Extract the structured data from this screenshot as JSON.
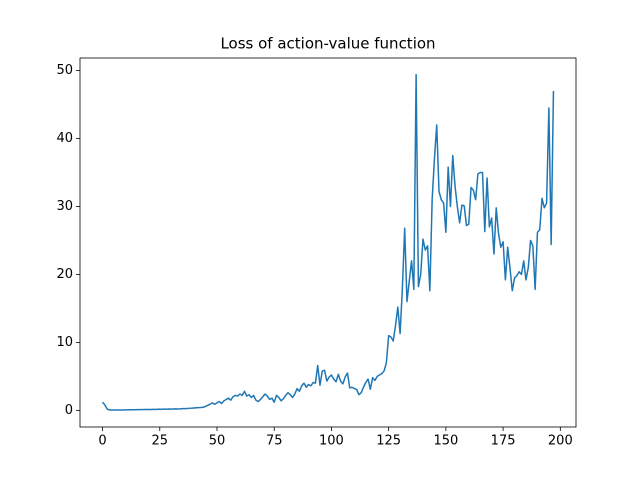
{
  "chart_data": {
    "type": "line",
    "title": "Loss of action-value function",
    "x": [
      0,
      1,
      2,
      3,
      4,
      5,
      6,
      7,
      8,
      9,
      10,
      11,
      12,
      13,
      14,
      15,
      16,
      17,
      18,
      19,
      20,
      21,
      22,
      23,
      24,
      25,
      26,
      27,
      28,
      29,
      30,
      31,
      32,
      33,
      34,
      35,
      36,
      37,
      38,
      39,
      40,
      41,
      42,
      43,
      44,
      45,
      46,
      47,
      48,
      49,
      50,
      51,
      52,
      53,
      54,
      55,
      56,
      57,
      58,
      59,
      60,
      61,
      62,
      63,
      64,
      65,
      66,
      67,
      68,
      69,
      70,
      71,
      72,
      73,
      74,
      75,
      76,
      77,
      78,
      79,
      80,
      81,
      82,
      83,
      84,
      85,
      86,
      87,
      88,
      89,
      90,
      91,
      92,
      93,
      94,
      95,
      96,
      97,
      98,
      99,
      100,
      101,
      102,
      103,
      104,
      105,
      106,
      107,
      108,
      109,
      110,
      111,
      112,
      113,
      114,
      115,
      116,
      117,
      118,
      119,
      120,
      121,
      122,
      123,
      124,
      125,
      126,
      127,
      128,
      129,
      130,
      131,
      132,
      133,
      134,
      135,
      136,
      137,
      138,
      139,
      140,
      141,
      142,
      143,
      144,
      145,
      146,
      147,
      148,
      149,
      150,
      151,
      152,
      153,
      154,
      155,
      156,
      157,
      158,
      159,
      160,
      161,
      162,
      163,
      164,
      165,
      166,
      167,
      168,
      169,
      170,
      171,
      172,
      173,
      174,
      175,
      176,
      177,
      178,
      179,
      180,
      181,
      182,
      183,
      184,
      185,
      186,
      187,
      188,
      189,
      190,
      191,
      192,
      193,
      194,
      195,
      196,
      197
    ],
    "series": [
      {
        "color": "#1f77b4",
        "values": [
          1.2,
          0.8,
          0.2,
          0.05,
          0.05,
          0.05,
          0.05,
          0.05,
          0.06,
          0.06,
          0.07,
          0.07,
          0.08,
          0.08,
          0.09,
          0.1,
          0.1,
          0.1,
          0.12,
          0.12,
          0.13,
          0.13,
          0.14,
          0.14,
          0.15,
          0.18,
          0.15,
          0.2,
          0.17,
          0.2,
          0.18,
          0.2,
          0.22,
          0.2,
          0.22,
          0.25,
          0.25,
          0.28,
          0.3,
          0.32,
          0.35,
          0.38,
          0.4,
          0.42,
          0.45,
          0.6,
          0.75,
          0.9,
          1.1,
          0.9,
          1.1,
          1.3,
          1.0,
          1.4,
          1.6,
          1.8,
          1.5,
          2.0,
          2.2,
          2.1,
          2.4,
          2.2,
          2.8,
          2.1,
          2.3,
          1.9,
          2.2,
          1.5,
          1.3,
          1.6,
          2.0,
          2.4,
          2.1,
          1.6,
          1.8,
          1.2,
          2.2,
          1.9,
          1.4,
          1.7,
          2.2,
          2.6,
          2.3,
          1.9,
          2.4,
          3.2,
          2.8,
          3.6,
          4.0,
          3.4,
          3.8,
          3.6,
          4.1,
          4.0,
          6.6,
          3.7,
          5.8,
          5.9,
          4.3,
          4.9,
          5.2,
          4.6,
          4.2,
          5.3,
          4.3,
          3.9,
          4.9,
          5.5,
          3.3,
          3.4,
          3.2,
          3.1,
          2.3,
          2.6,
          3.4,
          4.1,
          4.6,
          3.1,
          4.8,
          4.4,
          5.0,
          5.2,
          5.4,
          5.8,
          7.0,
          11.0,
          10.8,
          10.2,
          12.5,
          15.2,
          11.3,
          18.0,
          26.8,
          16.0,
          19.0,
          22.0,
          17.8,
          49.4,
          18.2,
          20.0,
          25.2,
          23.6,
          24.2,
          17.6,
          31.0,
          37.0,
          42.0,
          32.2,
          31.0,
          30.5,
          26.2,
          35.8,
          30.0,
          37.5,
          33.0,
          30.0,
          27.6,
          30.2,
          30.1,
          27.2,
          27.4,
          32.8,
          32.4,
          31.0,
          34.8,
          35.0,
          35.0,
          26.3,
          34.2,
          27.0,
          28.3,
          23.0,
          29.8,
          26.0,
          24.0,
          24.8,
          19.2,
          24.0,
          21.0,
          17.6,
          19.5,
          19.8,
          20.4,
          20.0,
          22.0,
          19.2,
          21.0,
          25.0,
          24.2,
          17.8,
          26.2,
          26.6,
          31.2,
          29.8,
          30.5,
          44.5,
          24.4,
          47.0
        ]
      }
    ],
    "xlim": [
      -9.85,
      206.85
    ],
    "xticks": [
      0,
      25,
      50,
      75,
      100,
      125,
      150,
      175,
      200
    ],
    "ylim": [
      -2.45,
      51.85
    ],
    "yticks": [
      0,
      10,
      20,
      30,
      40,
      50
    ]
  }
}
